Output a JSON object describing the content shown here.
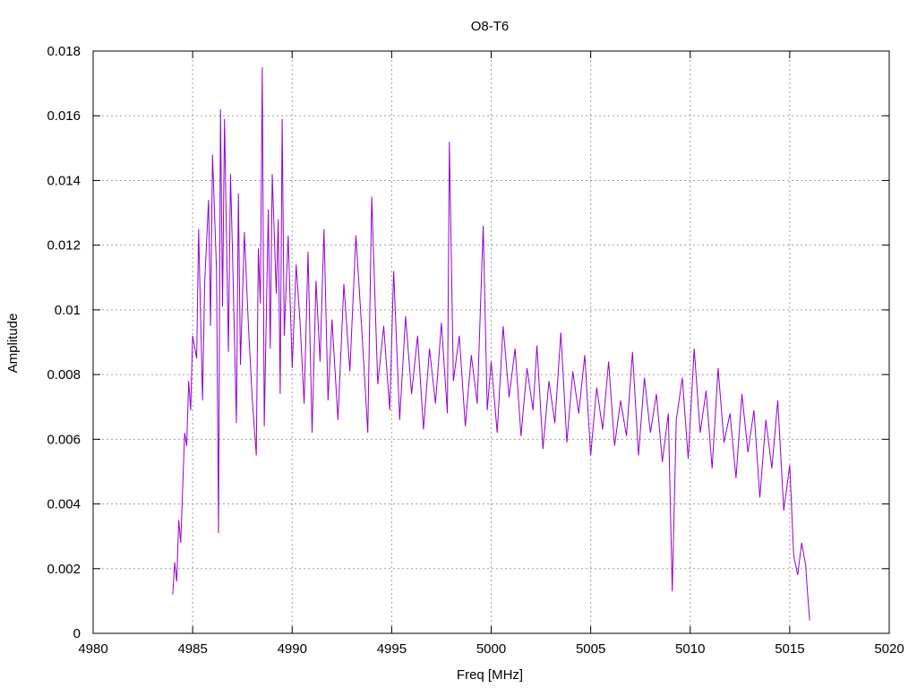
{
  "chart_data": {
    "type": "line",
    "title": "O8-T6",
    "xlabel": "Freq [MHz]",
    "ylabel": "Amplitude",
    "xlim": [
      4980,
      5020
    ],
    "ylim": [
      0,
      0.018
    ],
    "x_ticks": [
      "4980",
      "4985",
      "4990",
      "4995",
      "5000",
      "5005",
      "5010",
      "5015",
      "5020"
    ],
    "y_ticks": [
      "0",
      "0.002",
      "0.004",
      "0.006",
      "0.008",
      "0.01",
      "0.012",
      "0.014",
      "0.016",
      "0.018"
    ],
    "grid": true,
    "series_color": "#9400d3",
    "series": [
      {
        "x": [
          4984.0,
          4984.1,
          4984.2,
          4984.3,
          4984.4,
          4984.5,
          4984.6,
          4984.7,
          4984.8,
          4984.9,
          4985.0,
          4985.2,
          4985.3,
          4985.4,
          4985.5,
          4985.6,
          4985.8,
          4985.9,
          4986.0,
          4986.2,
          4986.3,
          4986.4,
          4986.5,
          4986.6,
          4986.8,
          4986.9,
          4987.0,
          4987.2,
          4987.3,
          4987.4,
          4987.6,
          4987.8,
          4988.0,
          4988.2,
          4988.3,
          4988.4,
          4988.5,
          4988.6,
          4988.8,
          4988.9,
          4989.0,
          4989.2,
          4989.3,
          4989.4,
          4989.5,
          4989.6,
          4989.8,
          4990.0,
          4990.2,
          4990.4,
          4990.6,
          4990.8,
          4991.0,
          4991.2,
          4991.4,
          4991.6,
          4991.8,
          4992.0,
          4992.3,
          4992.6,
          4992.9,
          4993.2,
          4993.5,
          4993.8,
          4994.0,
          4994.3,
          4994.6,
          4994.9,
          4995.1,
          4995.4,
          4995.7,
          4996.0,
          4996.3,
          4996.6,
          4996.9,
          4997.2,
          4997.5,
          4997.8,
          4997.9,
          4998.1,
          4998.4,
          4998.7,
          4999.0,
          4999.3,
          4999.6,
          4999.8,
          5000.0,
          5000.3,
          5000.6,
          5000.9,
          5001.2,
          5001.5,
          5001.8,
          5002.1,
          5002.3,
          5002.6,
          5002.9,
          5003.2,
          5003.5,
          5003.8,
          5004.1,
          5004.4,
          5004.7,
          5005.0,
          5005.3,
          5005.6,
          5005.9,
          5006.2,
          5006.5,
          5006.8,
          5007.1,
          5007.4,
          5007.7,
          5008.0,
          5008.3,
          5008.6,
          5008.9,
          5009.1,
          5009.3,
          5009.6,
          5009.9,
          5010.2,
          5010.5,
          5010.8,
          5011.1,
          5011.4,
          5011.7,
          5012.0,
          5012.3,
          5012.6,
          5012.9,
          5013.2,
          5013.5,
          5013.8,
          5014.1,
          5014.4,
          5014.7,
          5015.0,
          5015.2,
          5015.4,
          5015.6,
          5015.8,
          5015.9,
          5016.0
        ],
        "values": [
          0.0012,
          0.0022,
          0.0016,
          0.0035,
          0.0028,
          0.0045,
          0.0062,
          0.0058,
          0.0078,
          0.0069,
          0.0092,
          0.0085,
          0.0125,
          0.0098,
          0.0072,
          0.0108,
          0.0134,
          0.0095,
          0.0148,
          0.0112,
          0.0031,
          0.0162,
          0.0101,
          0.0159,
          0.0087,
          0.0142,
          0.0118,
          0.0065,
          0.0136,
          0.0083,
          0.0124,
          0.0095,
          0.0072,
          0.0055,
          0.0119,
          0.0102,
          0.0175,
          0.0064,
          0.0131,
          0.0088,
          0.0142,
          0.0105,
          0.0128,
          0.0074,
          0.0159,
          0.0092,
          0.0123,
          0.0082,
          0.0114,
          0.0096,
          0.0071,
          0.0118,
          0.0062,
          0.0109,
          0.0084,
          0.0125,
          0.0072,
          0.0097,
          0.0066,
          0.0108,
          0.0081,
          0.0123,
          0.0094,
          0.0062,
          0.0135,
          0.0077,
          0.0095,
          0.0069,
          0.0112,
          0.0066,
          0.0098,
          0.0074,
          0.0092,
          0.0063,
          0.0088,
          0.0071,
          0.0096,
          0.0068,
          0.0152,
          0.0078,
          0.0092,
          0.0064,
          0.0086,
          0.0071,
          0.0126,
          0.0069,
          0.0084,
          0.0062,
          0.0095,
          0.0073,
          0.0088,
          0.0061,
          0.0082,
          0.0069,
          0.0089,
          0.0057,
          0.0078,
          0.0065,
          0.0093,
          0.0059,
          0.0081,
          0.0068,
          0.0086,
          0.0055,
          0.0076,
          0.0063,
          0.0084,
          0.0058,
          0.0072,
          0.0061,
          0.0087,
          0.0055,
          0.0079,
          0.0062,
          0.0074,
          0.0053,
          0.0068,
          0.0013,
          0.0066,
          0.0079,
          0.0054,
          0.0088,
          0.0062,
          0.0075,
          0.0051,
          0.0082,
          0.0059,
          0.0068,
          0.0048,
          0.0074,
          0.0056,
          0.0069,
          0.0042,
          0.0066,
          0.0051,
          0.0072,
          0.0038,
          0.0052,
          0.0024,
          0.0018,
          0.0028,
          0.0021,
          0.0012,
          0.0004
        ]
      }
    ]
  }
}
